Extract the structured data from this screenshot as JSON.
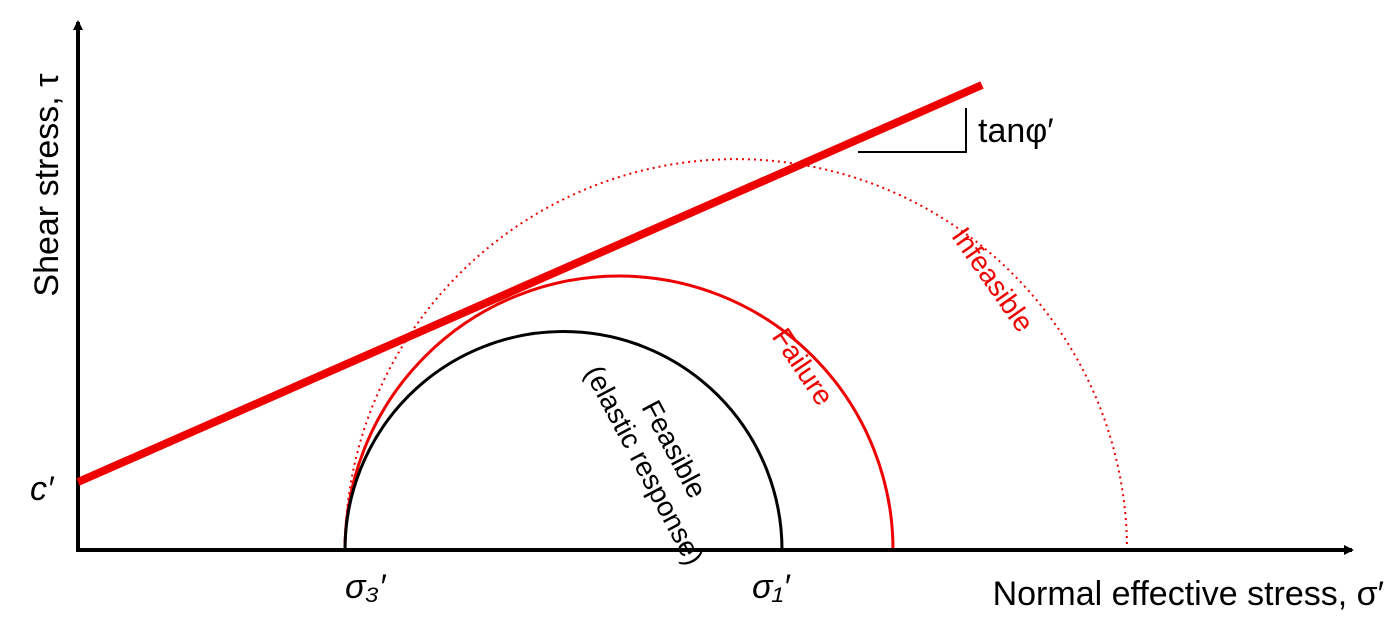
{
  "axes": {
    "y_label": "Shear stress, τ",
    "x_label": "Normal effective stress, σ′"
  },
  "labels": {
    "cohesion": "c′",
    "sigma3": "σ₃′",
    "sigma1": "σ₁′",
    "slope": "tanφ′"
  },
  "regions": {
    "feasible": [
      "Feasible",
      "(elastic response)"
    ],
    "failure": "Failure",
    "infeasible": "Infeasible"
  }
}
